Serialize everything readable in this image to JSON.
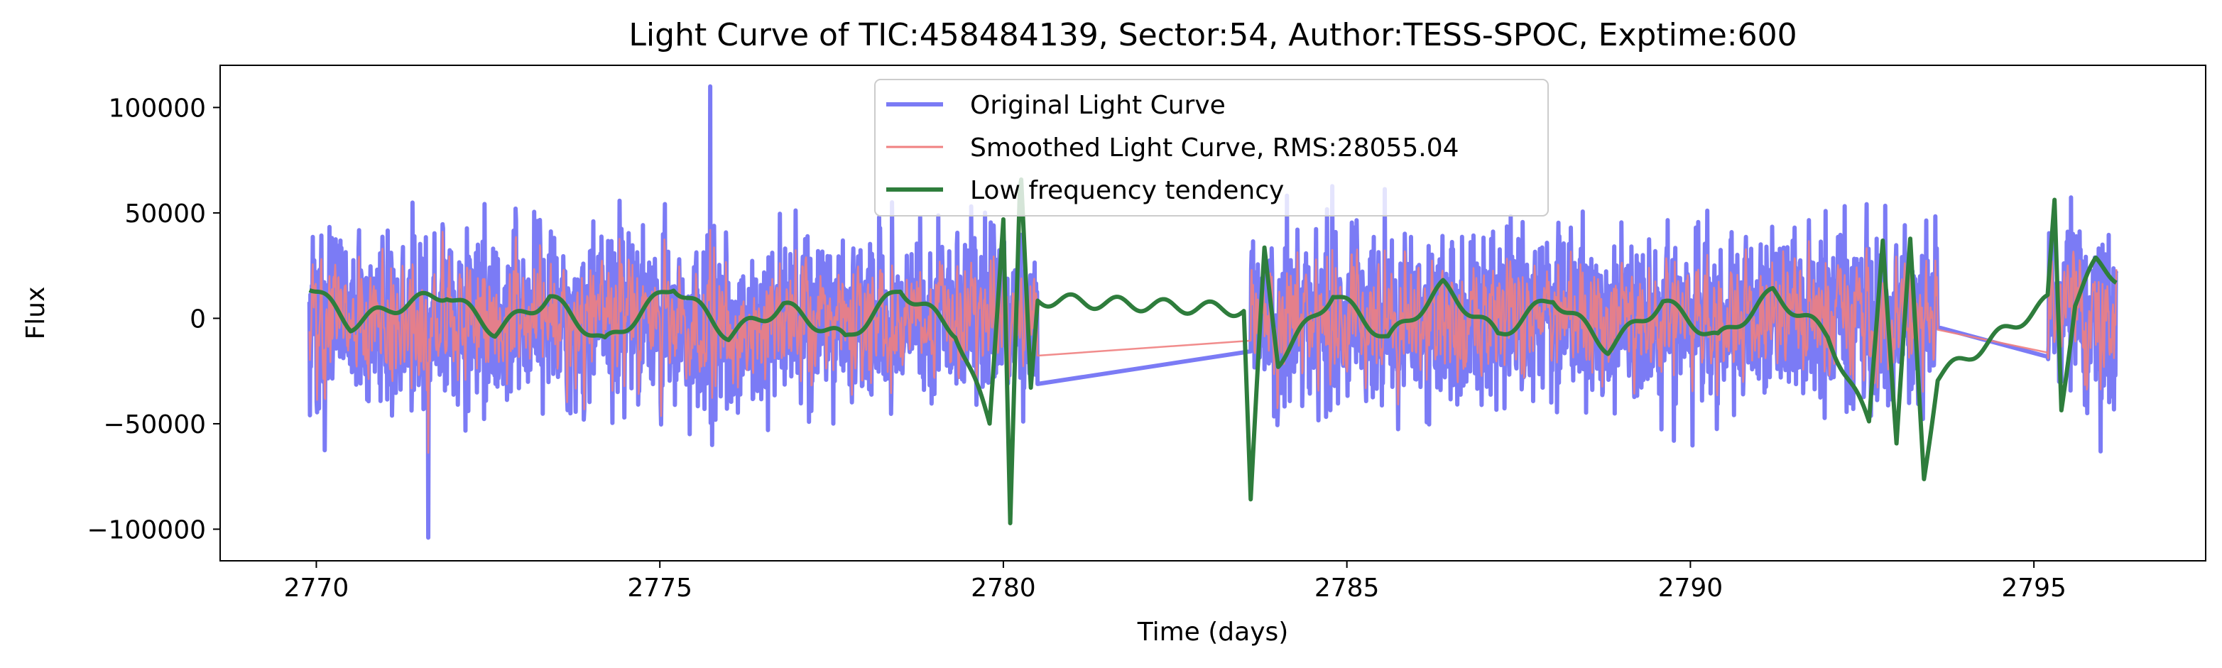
{
  "chart_data": {
    "type": "line",
    "title": "Light Curve of TIC:458484139, Sector:54, Author:TESS-SPOC, Exptime:600",
    "xlabel": "Time (days)",
    "ylabel": "Flux",
    "xlim": [
      2768.6,
      2797.5
    ],
    "ylim": [
      -115000,
      120000
    ],
    "x_ticks": [
      2770,
      2775,
      2780,
      2785,
      2790,
      2795
    ],
    "x_tick_labels": [
      "2770",
      "2775",
      "2780",
      "2785",
      "2790",
      "2795"
    ],
    "y_ticks": [
      -100000,
      -50000,
      0,
      50000,
      100000
    ],
    "y_tick_labels": [
      "−100000",
      "−50000",
      "0",
      "50000",
      "100000"
    ],
    "grid": false,
    "legend_position": "top-center",
    "segments": [
      [
        2769.9,
        2780.5
      ],
      [
        2783.6,
        2793.6
      ],
      [
        2795.2,
        2796.2
      ]
    ],
    "series": [
      {
        "name": "Original Light Curve",
        "color": "#7b7bf5",
        "amplitude": 30000,
        "extremes": {
          "max": 110000,
          "min": -104000
        }
      },
      {
        "name": "Smoothed Light Curve, RMS:28055.04",
        "color": "#f08080",
        "amplitude": 26000,
        "rms": 28055.04
      },
      {
        "name": "Low frequency tendency",
        "color": "#2e7d3c",
        "amplitude": 9000,
        "anchors": [
          [
            2769.9,
            16000
          ],
          [
            2770.5,
            -3000
          ],
          [
            2771.1,
            5000
          ],
          [
            2771.9,
            12000
          ],
          [
            2772.6,
            -6000
          ],
          [
            2773.4,
            10000
          ],
          [
            2774.2,
            -12000
          ],
          [
            2775.2,
            16000
          ],
          [
            2776.0,
            -8000
          ],
          [
            2776.8,
            6000
          ],
          [
            2777.7,
            -10000
          ],
          [
            2778.5,
            14000
          ],
          [
            2779.3,
            -6000
          ],
          [
            2779.8,
            -50000
          ],
          [
            2780.0,
            50000
          ],
          [
            2780.1,
            -96000
          ],
          [
            2780.25,
            70000
          ],
          [
            2780.4,
            -35000
          ],
          [
            2780.5,
            9000
          ],
          [
            2783.5,
            4000
          ],
          [
            2783.6,
            -88000
          ],
          [
            2783.8,
            32000
          ],
          [
            2784.0,
            -20000
          ],
          [
            2784.8,
            12000
          ],
          [
            2785.6,
            -10000
          ],
          [
            2786.4,
            15000
          ],
          [
            2787.2,
            -8000
          ],
          [
            2788.0,
            10000
          ],
          [
            2788.8,
            -14000
          ],
          [
            2789.6,
            8000
          ],
          [
            2790.4,
            -10000
          ],
          [
            2791.2,
            12000
          ],
          [
            2792.0,
            -8000
          ],
          [
            2792.6,
            -50000
          ],
          [
            2792.8,
            40000
          ],
          [
            2793.0,
            -60000
          ],
          [
            2793.2,
            35000
          ],
          [
            2793.4,
            -74000
          ],
          [
            2793.6,
            -28000
          ],
          [
            2795.2,
            8000
          ],
          [
            2795.3,
            55000
          ],
          [
            2795.4,
            -42000
          ],
          [
            2795.6,
            8000
          ],
          [
            2795.9,
            26000
          ],
          [
            2796.2,
            20000
          ]
        ]
      }
    ]
  }
}
